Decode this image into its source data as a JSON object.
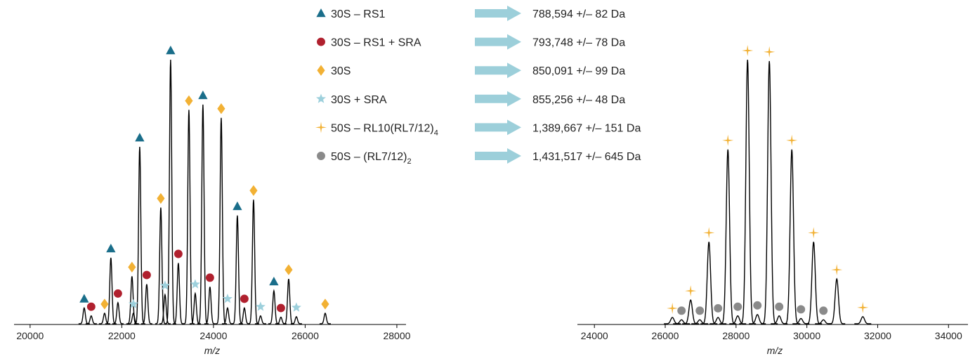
{
  "chart_data": [
    {
      "type": "spectrum",
      "xlabel": "m/z",
      "xlim": [
        19650,
        28200
      ],
      "xticks": [
        20000,
        22000,
        24000,
        26000,
        28000
      ],
      "ylim": [
        0,
        100
      ],
      "series": [
        {
          "name": "30S – RS1",
          "mass": "788,594 +/– 82 Da",
          "marker": "triangle",
          "color": "#1a6e8a",
          "x": [
            21180,
            21762,
            22391,
            23065,
            23770,
            24521,
            25318
          ],
          "values": [
            6,
            25,
            67,
            100,
            83,
            41,
            12.5
          ]
        },
        {
          "name": "30S – RS1 + SRA",
          "mass": "793,748 +/– 78 Da",
          "marker": "circle",
          "color": "#b0202e",
          "x": [
            21333,
            21916,
            22544,
            23234,
            23923,
            24674,
            25471
          ],
          "values": [
            3,
            8,
            15,
            23,
            14,
            6,
            2.5
          ]
        },
        {
          "name": "30S",
          "mass": "850,091 +/– 99 Da",
          "marker": "diamond",
          "color": "#f2b134",
          "x": [
            21625,
            22222,
            22851,
            23464,
            24169,
            24874,
            25640,
            26437
          ],
          "values": [
            4,
            18,
            44,
            81,
            78,
            47,
            17,
            4
          ]
        },
        {
          "name": "30S + SRA",
          "mass": "855,256 +/– 48 Da",
          "marker": "star",
          "color": "#9dd0dc",
          "x": [
            22253,
            22943,
            23602,
            24307,
            25027,
            25808
          ],
          "values": [
            4,
            11,
            11.5,
            6,
            3,
            2.7
          ]
        }
      ]
    },
    {
      "type": "spectrum",
      "xlabel": "m/z",
      "xlim": [
        23520,
        34550
      ],
      "xticks": [
        24000,
        26000,
        28000,
        30000,
        32000,
        34000
      ],
      "ylim": [
        0,
        100
      ],
      "series": [
        {
          "name": "50S – RL10(RL7/12)",
          "name_subscript": "4",
          "mass": "1,389,667 +/– 151 Da",
          "marker": "sparkle",
          "color": "#f2b134",
          "x": [
            26202,
            26718,
            27234,
            27770,
            28325,
            28940,
            29575,
            30190,
            30845,
            31580
          ],
          "values": [
            2.4,
            9,
            31,
            66,
            100,
            99.5,
            66,
            31,
            17,
            2.7
          ]
        },
        {
          "name": "50S – (RL7/12)",
          "name_subscript": "2",
          "mass": "1,431,517 +/– 645 Da",
          "marker": "circle",
          "color": "#8a8a8a",
          "x": [
            26460,
            26976,
            27492,
            28048,
            28603,
            29218,
            29833,
            30468
          ],
          "values": [
            1.5,
            1.5,
            2.4,
            3,
            3.5,
            3,
            2,
            1.5
          ]
        }
      ]
    }
  ]
}
